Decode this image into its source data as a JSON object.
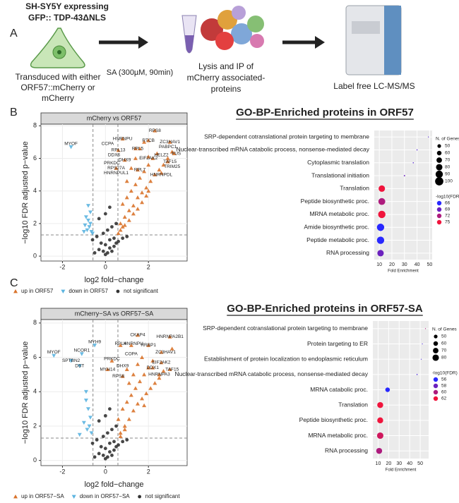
{
  "panel_a": {
    "label": "A",
    "cell_title": [
      "SH-SY5Y expressing",
      "GFP:: TDP-43ΔNLS"
    ],
    "treatment": "SA (300µM, 90min)",
    "step1": [
      "Transduced with either",
      "ORF57::mCherry or",
      "mCherry"
    ],
    "step2": [
      "Lysis and IP of",
      "mCherry associated-",
      "proteins"
    ],
    "step3": "Label free LC-MS/MS"
  },
  "panel_labels": [
    "B",
    "C"
  ],
  "chart_data": [
    {
      "type": "volcano",
      "title": "mCherry vs ORF57",
      "xlabel": "log2 fold−change",
      "ylabel": "−log10 FDR adjusted p−value",
      "xlim": [
        -3,
        3.8
      ],
      "xticks": [
        -2,
        0,
        2
      ],
      "ylim": [
        -0.3,
        8.1
      ],
      "yticks": [
        0,
        2,
        4,
        6,
        8
      ],
      "grid": true,
      "thresholds": {
        "x": [
          -0.58,
          0.58
        ],
        "y": 1.3
      },
      "series": [
        {
          "name": "up in ORF57",
          "color": "#d9732b",
          "marker": "triangle-up",
          "x": [
            0.7,
            0.9,
            1.1,
            1.3,
            1.5,
            1.7,
            1.9,
            2.1,
            2.3,
            2.5,
            2.7,
            2.9,
            3.1,
            0.8,
            1.0,
            1.2,
            1.4,
            1.6,
            1.8,
            2.0,
            2.2,
            2.4,
            0.7,
            0.9,
            1.1,
            1.3,
            1.5,
            1.7,
            1.9,
            0.6,
            0.8,
            1.0,
            1.2,
            1.4,
            1.6,
            1.8,
            2.0,
            2.3,
            3.0,
            2.6,
            2.0,
            1.5,
            0.9,
            3.2,
            2.9,
            0.6,
            0.5,
            0.8,
            1.4,
            2.0
          ],
          "values": [
            2.0,
            2.4,
            2.8,
            3.1,
            3.6,
            3.9,
            4.2,
            4.6,
            5.0,
            5.3,
            5.6,
            6.0,
            6.4,
            3.2,
            3.6,
            4.0,
            4.4,
            4.8,
            5.2,
            5.6,
            6.0,
            6.3,
            1.6,
            1.9,
            2.2,
            2.6,
            2.9,
            3.3,
            3.7,
            1.4,
            1.8,
            4.6,
            5.4,
            6.0,
            6.6,
            7.0,
            7.1,
            7.7,
            7.0,
            5.1,
            6.1,
            5.3,
            5.9,
            6.3,
            5.8,
            6.5,
            5.4,
            7.2,
            6.6,
            4.0
          ]
        },
        {
          "name": "down in ORF57",
          "color": "#5bb4e0",
          "marker": "triangle-down",
          "x": [
            -1.6,
            -0.9,
            -0.8,
            -0.7,
            -0.75,
            -0.85,
            -0.65,
            -0.95,
            -0.7,
            -0.8,
            -0.6,
            -1.0
          ],
          "values": [
            6.7,
            2.4,
            2.2,
            2.0,
            1.8,
            1.6,
            1.5,
            1.9,
            2.7,
            3.1,
            1.4,
            1.5
          ]
        },
        {
          "name": "not significant",
          "color": "#333333",
          "marker": "circle",
          "x": [
            -0.5,
            -0.3,
            -0.1,
            0.0,
            0.1,
            0.2,
            0.3,
            0.4,
            0.5,
            -0.2,
            0.0,
            0.2,
            0.4,
            -0.4,
            -0.1,
            0.1,
            0.3,
            0.5,
            -0.3,
            0.0,
            0.2,
            0.6,
            0.8,
            1.0,
            -0.6
          ],
          "values": [
            0.2,
            0.4,
            0.3,
            0.1,
            0.2,
            0.5,
            0.3,
            0.6,
            0.8,
            0.8,
            0.7,
            1.0,
            1.1,
            1.2,
            1.4,
            1.6,
            1.8,
            2.0,
            2.3,
            2.6,
            3.0,
            0.9,
            1.1,
            1.2,
            1.0
          ]
        }
      ],
      "annotations": [
        {
          "text": "RPS8",
          "x": 2.3,
          "y": 7.7
        },
        {
          "text": "ZC3HAV1",
          "x": 3.0,
          "y": 7.0
        },
        {
          "text": "CCPA",
          "x": 0.1,
          "y": 6.9
        },
        {
          "text": "HNRNPU",
          "x": 0.8,
          "y": 7.2
        },
        {
          "text": "RTCB",
          "x": 2.0,
          "y": 7.1
        },
        {
          "text": "PABPC1",
          "x": 2.9,
          "y": 6.7
        },
        {
          "text": "RPL13",
          "x": 0.6,
          "y": 6.5
        },
        {
          "text": "RPL5",
          "x": 1.5,
          "y": 6.6
        },
        {
          "text": "HELZ2",
          "x": 2.6,
          "y": 6.2
        },
        {
          "text": "DDX6",
          "x": 0.4,
          "y": 6.2
        },
        {
          "text": "DHX9",
          "x": 0.9,
          "y": 5.9
        },
        {
          "text": "EIF2AK2",
          "x": 2.0,
          "y": 6.0
        },
        {
          "text": "FUS",
          "x": 3.3,
          "y": 6.3
        },
        {
          "text": "PRKDC",
          "x": 0.3,
          "y": 5.7
        },
        {
          "text": "TAF15",
          "x": 3.0,
          "y": 5.8
        },
        {
          "text": "RPS27A",
          "x": 0.5,
          "y": 5.4
        },
        {
          "text": "RPL7",
          "x": 1.6,
          "y": 5.3
        },
        {
          "text": "TRIM25",
          "x": 3.1,
          "y": 5.5
        },
        {
          "text": "HNRNPUL1",
          "x": 0.5,
          "y": 5.1
        },
        {
          "text": "HNRNPDL",
          "x": 2.6,
          "y": 5.0
        },
        {
          "text": "MYOF",
          "x": -1.6,
          "y": 6.9
        }
      ]
    },
    {
      "type": "dot",
      "title": "GO-BP-Enriched proteins in ORF57",
      "xlabel": "Fold Enrichment",
      "xlim": [
        6,
        52
      ],
      "xticks": [
        10,
        20,
        30,
        40,
        50
      ],
      "categories": [
        "SRP-dependent cotranslational protein targeting to membrane",
        "Nuclear-transcribed mRNA catabolic process, nonsense-mediated decay",
        "Cytoplasmic translation",
        "Translational initiation",
        "Translation",
        "Peptide biosynthetic proc.",
        "MRNA metabolic proc.",
        "Amide biosynthetic proc.",
        "Peptide metabolic proc.",
        "RNA processing"
      ],
      "values": [
        49,
        40,
        37,
        30,
        12,
        12,
        12,
        11,
        11,
        11
      ],
      "sizes": [
        20,
        22,
        22,
        25,
        80,
        85,
        90,
        90,
        90,
        80
      ],
      "fdr": [
        68,
        68,
        68,
        69,
        75,
        72,
        75,
        66,
        66,
        69
      ],
      "size_title": "N. of Genes",
      "size_ticks": [
        50,
        60,
        70,
        80,
        90,
        100
      ],
      "color_title": "-log10(FDR)",
      "color_ticks": [
        66,
        69,
        72,
        75
      ]
    },
    {
      "type": "volcano",
      "title": "mCherry−SA vs ORF57−SA",
      "xlabel": "log2 fold−change",
      "ylabel": "−log10 FDR adjusted p−value",
      "xlim": [
        -3,
        3.8
      ],
      "xticks": [
        -2,
        0,
        2
      ],
      "ylim": [
        -0.3,
        8.2
      ],
      "yticks": [
        0,
        2,
        4,
        6,
        8
      ],
      "grid": true,
      "thresholds": {
        "x": [
          -0.58,
          0.58
        ],
        "y": 1.3
      },
      "series": [
        {
          "name": "up in ORF57−SA",
          "color": "#d9732b",
          "marker": "triangle-up",
          "x": [
            0.7,
            0.9,
            1.1,
            1.3,
            1.5,
            1.7,
            1.9,
            2.1,
            2.3,
            2.5,
            2.7,
            3.0,
            0.8,
            1.0,
            1.2,
            1.4,
            1.6,
            1.8,
            2.0,
            2.2,
            0.7,
            0.9,
            1.1,
            1.3,
            1.5,
            1.7,
            0.6,
            0.8,
            1.0,
            1.5,
            2.0,
            3.0,
            2.6,
            2.2,
            1.2,
            0.7,
            0.3,
            3.1,
            2.5,
            0.1,
            2.6,
            1.8
          ],
          "values": [
            1.6,
            2.0,
            2.4,
            2.9,
            3.3,
            3.6,
            3.9,
            4.2,
            4.5,
            4.8,
            5.2,
            5.3,
            3.0,
            3.4,
            3.8,
            4.2,
            4.6,
            5.0,
            5.4,
            5.8,
            1.4,
            1.8,
            4.5,
            5.0,
            5.6,
            6.0,
            2.4,
            4.9,
            5.3,
            7.3,
            6.7,
            7.2,
            6.3,
            5.4,
            6.7,
            6.7,
            5.8,
            6.5,
            5.0,
            5.3,
            5.7,
            3.2
          ]
        },
        {
          "name": "down in ORF57−SA",
          "color": "#5bb4e0",
          "marker": "triangle-down",
          "x": [
            -2.4,
            -1.1,
            -1.6,
            -1.2,
            -0.5,
            -0.9,
            -0.8,
            -0.7,
            -1.0,
            -0.75,
            -0.85,
            -0.65,
            -1.2,
            -0.9
          ],
          "values": [
            6.1,
            6.2,
            5.8,
            5.5,
            6.7,
            3.5,
            3.0,
            2.5,
            2.2,
            2.0,
            1.8,
            1.6,
            1.5,
            4.0
          ]
        },
        {
          "name": "not significant",
          "color": "#333333",
          "marker": "circle",
          "x": [
            -0.5,
            -0.3,
            -0.1,
            0.0,
            0.1,
            0.2,
            0.3,
            0.4,
            0.5,
            -0.2,
            0.0,
            0.2,
            0.4,
            -0.4,
            -0.1,
            0.1,
            0.3,
            0.5,
            -0.3,
            0.0,
            0.2,
            0.6,
            0.8,
            1.0,
            -0.6
          ],
          "values": [
            0.2,
            0.4,
            0.3,
            0.1,
            0.2,
            0.5,
            0.3,
            0.6,
            0.8,
            0.8,
            0.7,
            1.0,
            1.1,
            1.2,
            1.4,
            1.6,
            1.8,
            2.0,
            2.3,
            2.6,
            3.0,
            0.9,
            1.1,
            1.2,
            1.0
          ]
        }
      ],
      "annotations": [
        {
          "text": "CKAP4",
          "x": 1.5,
          "y": 7.3
        },
        {
          "text": "HNRNPA2B1",
          "x": 3.0,
          "y": 7.2
        },
        {
          "text": "MYH9",
          "x": -0.5,
          "y": 6.9
        },
        {
          "text": "RPL4",
          "x": 0.7,
          "y": 6.8
        },
        {
          "text": "HNRNPU",
          "x": 1.3,
          "y": 6.8
        },
        {
          "text": "RRBP1",
          "x": 2.0,
          "y": 6.7
        },
        {
          "text": "ZC3HAV1",
          "x": 2.8,
          "y": 6.3
        },
        {
          "text": "MYOF",
          "x": -2.4,
          "y": 6.3
        },
        {
          "text": "NCOR1",
          "x": -1.1,
          "y": 6.4
        },
        {
          "text": "COPA",
          "x": 1.2,
          "y": 6.2
        },
        {
          "text": "SPTBN2",
          "x": -1.6,
          "y": 5.8
        },
        {
          "text": "DST",
          "x": -1.2,
          "y": 5.5
        },
        {
          "text": "PRKDC",
          "x": 0.3,
          "y": 5.9
        },
        {
          "text": "EIF2AK2",
          "x": 2.6,
          "y": 5.7
        },
        {
          "text": "DDX1",
          "x": 2.2,
          "y": 5.4
        },
        {
          "text": "TAF15",
          "x": 3.1,
          "y": 5.3
        },
        {
          "text": "MYH14",
          "x": 0.1,
          "y": 5.3
        },
        {
          "text": "DHX9",
          "x": 0.8,
          "y": 5.5
        },
        {
          "text": "HNRNPA3",
          "x": 2.5,
          "y": 5.0
        },
        {
          "text": "RPS8",
          "x": 0.6,
          "y": 4.9
        }
      ]
    },
    {
      "type": "dot",
      "title": "GO-BP-Enriched proteins in ORF57-SA",
      "xlabel": "Fold Enrichment",
      "xlim": [
        5,
        58
      ],
      "xticks": [
        10,
        20,
        30,
        40,
        50
      ],
      "categories": [
        "SRP-dependent cotranslational protein targeting to membrane",
        "Protein targeting to ER",
        "Establishment of protein localization to endoplasmic reticulum",
        "Nuclear-transcribed mRNA catabolic process, nonsense-mediated decay",
        "MRNA catabolic proc.",
        "Translation",
        "Peptide biosynthetic proc.",
        "MRNA metabolic proc.",
        "RNA processing"
      ],
      "values": [
        55,
        52,
        51,
        47,
        19,
        12,
        12,
        12,
        11
      ],
      "sizes": [
        15,
        18,
        18,
        22,
        60,
        75,
        75,
        80,
        75
      ],
      "fdr": [
        60,
        57,
        57,
        57,
        56,
        62,
        62,
        61,
        60
      ],
      "size_title": "N. of Genes",
      "size_ticks": [
        50,
        60,
        70,
        80
      ],
      "color_title": "-log10(FDR)",
      "color_ticks": [
        56,
        58,
        60,
        62
      ]
    }
  ]
}
